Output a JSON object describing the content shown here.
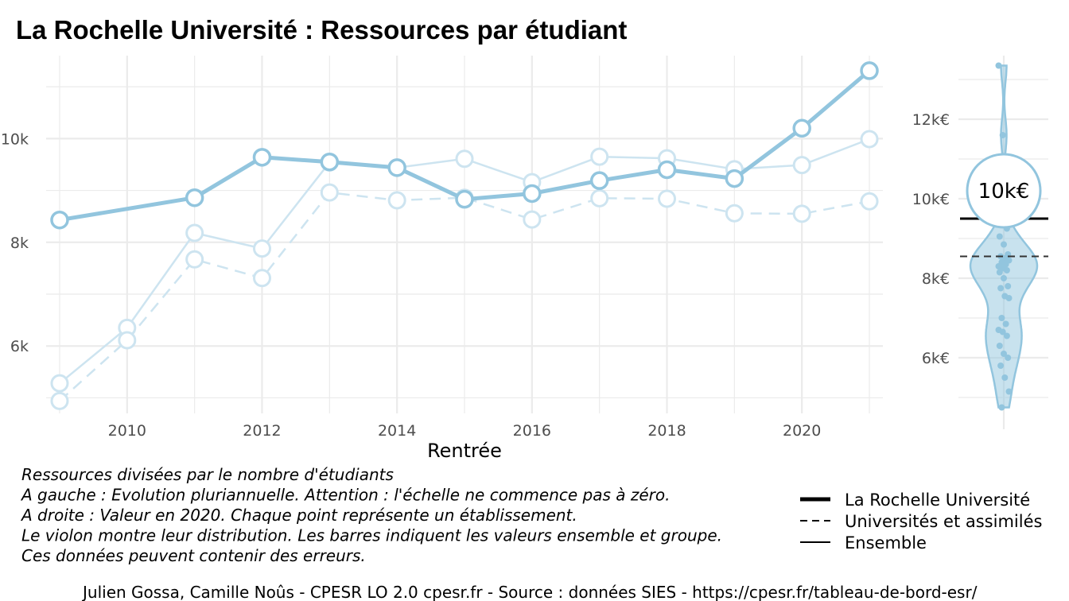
{
  "title": "La Rochelle Université  :  Ressources par étudiant",
  "chart_data": [
    {
      "type": "line",
      "xlabel": "Rentrée",
      "ylabel": "",
      "xlim": [
        2008.8,
        2021.2
      ],
      "ylim": [
        4700,
        11600
      ],
      "x_ticks": [
        2010,
        2012,
        2014,
        2016,
        2018,
        2020
      ],
      "x_tick_labels": [
        "2010",
        "2012",
        "2014",
        "2016",
        "2018",
        "2020"
      ],
      "y_ticks": [
        6000,
        8000,
        10000
      ],
      "y_tick_labels": [
        "6k",
        "8k",
        "10k"
      ],
      "x": [
        2009,
        2010,
        2011,
        2012,
        2013,
        2014,
        2015,
        2016,
        2017,
        2018,
        2019,
        2020,
        2021
      ],
      "series": [
        {
          "name": "La Rochelle Université",
          "style": "thick",
          "color": "#92c5de",
          "values": [
            8430,
            null,
            8860,
            9640,
            9550,
            9440,
            8830,
            8940,
            9190,
            9400,
            9230,
            10200,
            11310
          ]
        },
        {
          "name": "Universités et assimilés",
          "style": "dashed",
          "color": "#cde4f0",
          "values": [
            4940,
            6110,
            7670,
            7310,
            8960,
            8810,
            8860,
            8440,
            8850,
            8840,
            8560,
            8550,
            8790
          ]
        },
        {
          "name": "Ensemble",
          "style": "thin",
          "color": "#cde4f0",
          "values": [
            5280,
            6350,
            8180,
            7880,
            9540,
            9440,
            9610,
            9160,
            9650,
            9620,
            9410,
            9490,
            9990
          ]
        }
      ],
      "grid": true
    },
    {
      "type": "violin",
      "year": 2020,
      "ylim": [
        4600,
        13600
      ],
      "y_ticks": [
        6000,
        8000,
        10000,
        12000
      ],
      "y_tick_labels": [
        "6k€",
        "8k€",
        "10k€",
        "12k€"
      ],
      "highlight_value": 10200,
      "highlight_label": "10k€",
      "line_la_rochelle": 9500,
      "line_groupe": 8550,
      "points": [
        13350,
        11600,
        9250,
        9050,
        8850,
        8600,
        8550,
        8500,
        8450,
        8400,
        8350,
        8300,
        8250,
        8200,
        8150,
        8000,
        7800,
        7750,
        7550,
        7500,
        7000,
        6850,
        6700,
        6650,
        6550,
        6300,
        6100,
        6000,
        5800,
        5500,
        5150,
        4750
      ],
      "color": "#92c5de"
    }
  ],
  "legend": {
    "items": [
      {
        "label": "La Rochelle Université",
        "style": "thick"
      },
      {
        "label": "Universités et assimilés",
        "style": "dashed"
      },
      {
        "label": "Ensemble",
        "style": "thin"
      }
    ]
  },
  "caption_lines": [
    "Ressources divisées par le nombre d'étudiants",
    "A gauche : Evolution pluriannuelle. Attention : l'échelle ne commence pas à zéro.",
    "A droite : Valeur en 2020. Chaque point représente un établissement.",
    "Le violon montre leur distribution. Les barres indiquent les valeurs ensemble et groupe.",
    "Ces données peuvent contenir des erreurs."
  ],
  "source": "Julien Gossa, Camille Noûs - CPESR LO 2.0 cpesr.fr - Source : données SIES - https://cpesr.fr/tableau-de-bord-esr/"
}
